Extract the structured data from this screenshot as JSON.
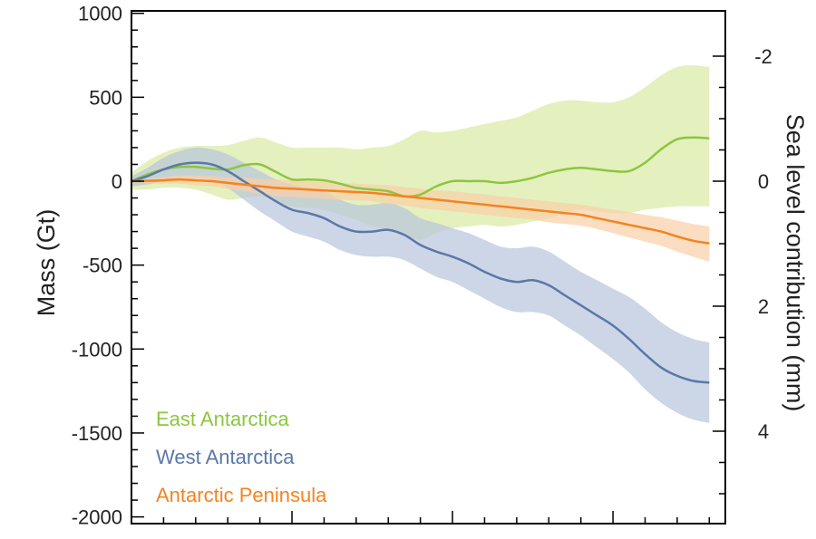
{
  "chart_data": {
    "type": "area",
    "title": "",
    "ylabel": "Mass (Gt)",
    "ylabel_right": "Sea level contribution (mm)",
    "xlabel": "",
    "ylim": [
      -2000,
      1100
    ],
    "xlim": [
      0,
      18.5
    ],
    "yticks": [
      {
        "value": 1000,
        "label": "1000"
      },
      {
        "value": 500,
        "label": "500"
      },
      {
        "value": 0,
        "label": "0"
      },
      {
        "value": -500,
        "label": "-500"
      },
      {
        "value": -1000,
        "label": "-1000"
      },
      {
        "value": -1500,
        "label": "-1500"
      },
      {
        "value": -2000,
        "label": "-2000"
      }
    ],
    "yticks_right": [
      {
        "value": -2,
        "label": "-2"
      },
      {
        "value": 0,
        "label": "0"
      },
      {
        "value": 2,
        "label": "2"
      },
      {
        "value": 4,
        "label": "4"
      }
    ],
    "x_major_ticks": [
      0,
      5,
      10,
      15
    ],
    "grid": false,
    "legend_position": "bottom-left",
    "x": [
      0,
      0.5,
      1,
      1.5,
      2,
      2.5,
      3,
      3.5,
      4,
      4.5,
      5,
      5.5,
      6,
      6.5,
      7,
      7.5,
      8,
      8.5,
      9,
      9.5,
      10,
      10.5,
      11,
      11.5,
      12,
      12.5,
      13,
      13.5,
      14,
      14.5,
      15,
      15.5,
      16,
      16.5,
      17,
      17.5,
      18
    ],
    "series": [
      {
        "name": "East Antarctica",
        "color": "#8cc63f",
        "band_color": "#d9e9a3",
        "values": [
          0,
          40,
          70,
          85,
          85,
          75,
          70,
          95,
          100,
          55,
          10,
          10,
          5,
          -15,
          -40,
          -50,
          -60,
          -90,
          -80,
          -30,
          0,
          0,
          0,
          -10,
          0,
          20,
          50,
          70,
          80,
          70,
          60,
          60,
          110,
          190,
          250,
          260,
          255
        ],
        "upper": [
          50,
          120,
          170,
          200,
          210,
          210,
          215,
          240,
          260,
          230,
          200,
          200,
          200,
          200,
          190,
          200,
          210,
          250,
          300,
          290,
          300,
          320,
          340,
          360,
          380,
          420,
          460,
          480,
          480,
          470,
          470,
          500,
          560,
          630,
          680,
          690,
          680
        ],
        "lower": [
          -50,
          -50,
          -40,
          -40,
          -50,
          -80,
          -110,
          -100,
          -90,
          -120,
          -150,
          -160,
          -170,
          -200,
          -230,
          -270,
          -290,
          -320,
          -350,
          -310,
          -280,
          -270,
          -260,
          -270,
          -260,
          -240,
          -220,
          -190,
          -170,
          -180,
          -190,
          -190,
          -170,
          -160,
          -150,
          -150,
          -150
        ]
      },
      {
        "name": "West Antarctica",
        "color": "#5a78a8",
        "band_color": "#b8c4db",
        "values": [
          0,
          30,
          70,
          100,
          110,
          100,
          60,
          0,
          -60,
          -120,
          -170,
          -190,
          -220,
          -270,
          -300,
          -300,
          -290,
          -320,
          -380,
          -420,
          -450,
          -490,
          -540,
          -580,
          -600,
          -590,
          -620,
          -680,
          -740,
          -800,
          -860,
          -940,
          -1030,
          -1110,
          -1160,
          -1190,
          -1200
        ],
        "upper": [
          30,
          80,
          140,
          180,
          200,
          190,
          160,
          110,
          60,
          10,
          -20,
          -40,
          -60,
          -110,
          -140,
          -140,
          -130,
          -160,
          -220,
          -250,
          -280,
          -310,
          -350,
          -390,
          -400,
          -390,
          -420,
          -480,
          -540,
          -590,
          -640,
          -690,
          -760,
          -840,
          -900,
          -940,
          -960
        ],
        "lower": [
          -30,
          -20,
          0,
          20,
          20,
          10,
          -40,
          -110,
          -180,
          -240,
          -300,
          -330,
          -360,
          -410,
          -440,
          -450,
          -450,
          -470,
          -520,
          -570,
          -600,
          -650,
          -700,
          -750,
          -780,
          -780,
          -800,
          -860,
          -920,
          -990,
          -1060,
          -1140,
          -1240,
          -1320,
          -1380,
          -1420,
          -1440
        ]
      },
      {
        "name": "Antarctic Peninsula",
        "color": "#f4831f",
        "band_color": "#f9cfa6",
        "values": [
          0,
          2,
          5,
          10,
          5,
          0,
          -10,
          -20,
          -30,
          -40,
          -45,
          -50,
          -55,
          -60,
          -65,
          -70,
          -80,
          -90,
          -100,
          -110,
          -120,
          -130,
          -140,
          -150,
          -160,
          -170,
          -180,
          -190,
          -200,
          -220,
          -240,
          -260,
          -280,
          -300,
          -330,
          -355,
          -370
        ],
        "upper": [
          5,
          15,
          25,
          35,
          35,
          30,
          25,
          20,
          15,
          10,
          5,
          0,
          -5,
          -10,
          -15,
          -20,
          -25,
          -35,
          -45,
          -55,
          -60,
          -70,
          -80,
          -90,
          -100,
          -110,
          -120,
          -130,
          -140,
          -155,
          -170,
          -185,
          -200,
          -215,
          -235,
          -255,
          -270
        ],
        "lower": [
          -5,
          -10,
          -15,
          -15,
          -25,
          -30,
          -45,
          -60,
          -75,
          -90,
          -95,
          -100,
          -105,
          -110,
          -115,
          -120,
          -135,
          -145,
          -160,
          -170,
          -180,
          -190,
          -200,
          -210,
          -220,
          -230,
          -245,
          -255,
          -265,
          -285,
          -310,
          -335,
          -360,
          -385,
          -420,
          -450,
          -480
        ]
      }
    ]
  }
}
